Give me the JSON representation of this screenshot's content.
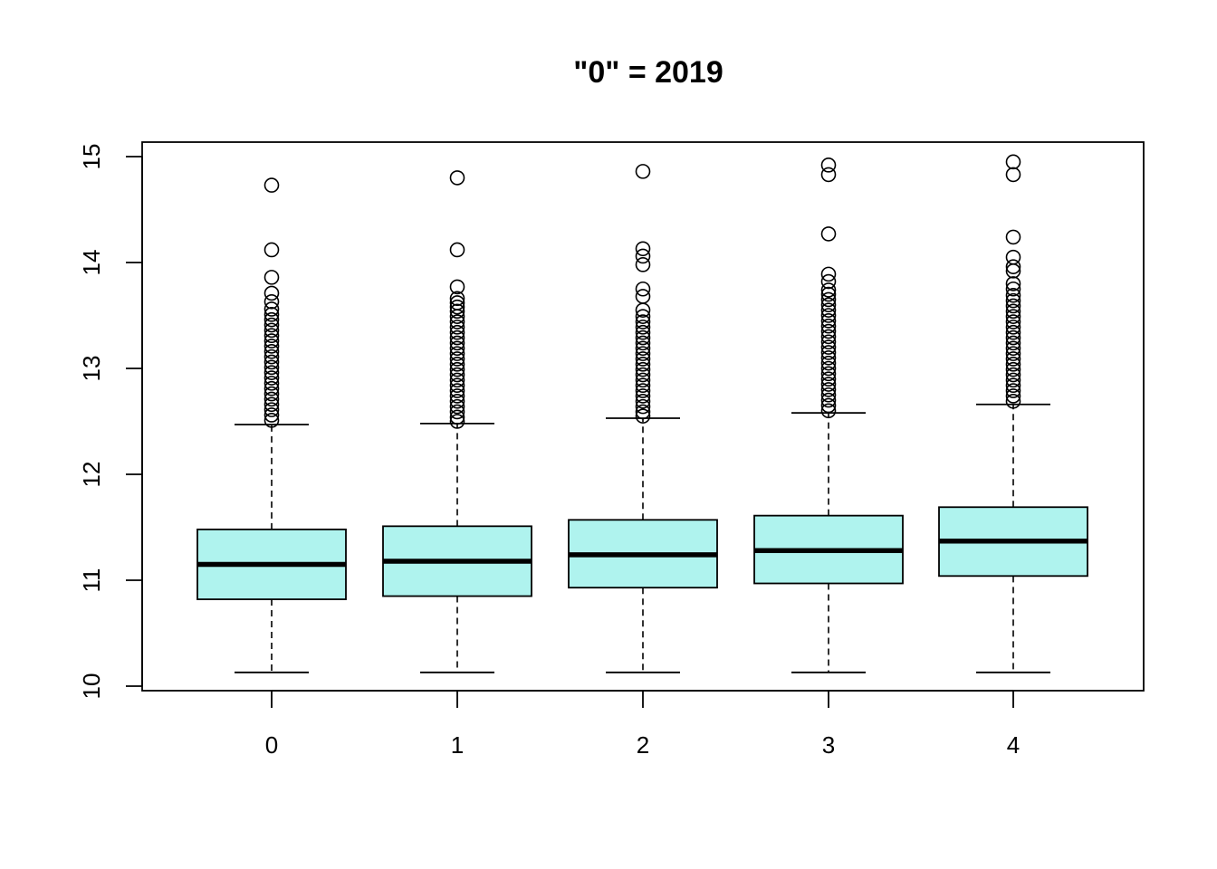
{
  "chart_data": {
    "type": "box",
    "title": "\"0\" = 2019",
    "xlabel": "",
    "ylabel": "",
    "categories": [
      "0",
      "1",
      "2",
      "3",
      "4"
    ],
    "ylim": [
      9.95,
      15.15
    ],
    "yticks": [
      10,
      11,
      12,
      13,
      14,
      15
    ],
    "box_fill": "#aff3ee",
    "boxes": [
      {
        "category": "0",
        "lower_whisker": 10.13,
        "q1": 10.82,
        "median": 11.15,
        "q3": 11.48,
        "upper_whisker": 12.47,
        "outliers": [
          14.73,
          14.12,
          13.86,
          13.71,
          13.63,
          13.56,
          13.51,
          13.46,
          13.41,
          13.36,
          13.31,
          13.26,
          13.21,
          13.16,
          13.11,
          13.06,
          13.01,
          12.96,
          12.91,
          12.86,
          12.81,
          12.76,
          12.71,
          12.66,
          12.61,
          12.56,
          12.51
        ]
      },
      {
        "category": "1",
        "lower_whisker": 10.13,
        "q1": 10.85,
        "median": 11.18,
        "q3": 11.51,
        "upper_whisker": 12.48,
        "outliers": [
          14.8,
          14.12,
          13.77,
          13.66,
          13.62,
          13.58,
          13.54,
          13.49,
          13.44,
          13.39,
          13.34,
          13.29,
          13.24,
          13.19,
          13.14,
          13.09,
          13.04,
          12.99,
          12.94,
          12.89,
          12.84,
          12.79,
          12.74,
          12.69,
          12.64,
          12.59,
          12.54,
          12.5
        ]
      },
      {
        "category": "2",
        "lower_whisker": 10.13,
        "q1": 10.93,
        "median": 11.24,
        "q3": 11.57,
        "upper_whisker": 12.53,
        "outliers": [
          14.86,
          14.13,
          14.06,
          13.98,
          13.75,
          13.68,
          13.55,
          13.49,
          13.44,
          13.39,
          13.34,
          13.29,
          13.24,
          13.19,
          13.14,
          13.09,
          13.04,
          12.99,
          12.94,
          12.89,
          12.84,
          12.79,
          12.74,
          12.69,
          12.64,
          12.59,
          12.55
        ]
      },
      {
        "category": "3",
        "lower_whisker": 10.13,
        "q1": 10.97,
        "median": 11.28,
        "q3": 11.61,
        "upper_whisker": 12.58,
        "outliers": [
          14.92,
          14.83,
          14.27,
          13.89,
          13.82,
          13.74,
          13.7,
          13.65,
          13.6,
          13.55,
          13.5,
          13.45,
          13.4,
          13.35,
          13.3,
          13.25,
          13.2,
          13.15,
          13.1,
          13.05,
          13.0,
          12.95,
          12.9,
          12.85,
          12.8,
          12.75,
          12.7,
          12.65,
          12.6
        ]
      },
      {
        "category": "4",
        "lower_whisker": 10.13,
        "q1": 11.04,
        "median": 11.37,
        "q3": 11.69,
        "upper_whisker": 12.66,
        "outliers": [
          14.95,
          14.83,
          14.24,
          14.05,
          13.96,
          13.92,
          13.8,
          13.75,
          13.69,
          13.64,
          13.59,
          13.54,
          13.49,
          13.44,
          13.39,
          13.34,
          13.29,
          13.24,
          13.19,
          13.14,
          13.09,
          13.04,
          12.99,
          12.94,
          12.89,
          12.84,
          12.79,
          12.74,
          12.69
        ]
      }
    ]
  }
}
